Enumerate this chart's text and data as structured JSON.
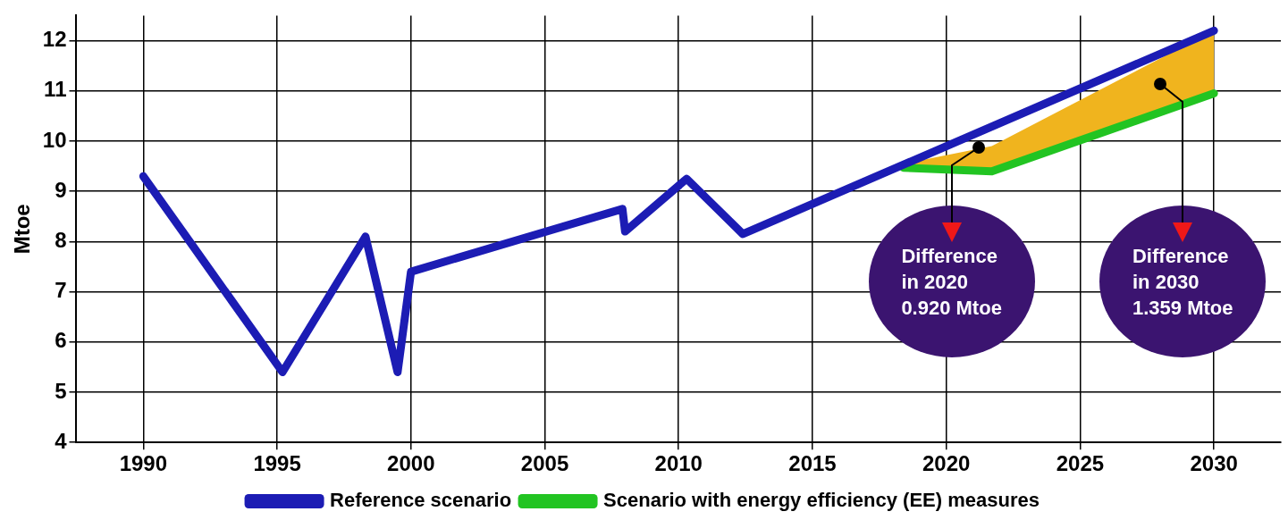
{
  "chart_data": {
    "type": "line",
    "ylabel": "Mtoe",
    "xlim": [
      1987.5,
      2032.5
    ],
    "xticks": [
      1990,
      1995,
      2000,
      2005,
      2010,
      2015,
      2020,
      2025,
      2030
    ],
    "ylim": [
      4,
      12.5
    ],
    "yticks": [
      4,
      5,
      6,
      7,
      8,
      9,
      10,
      11,
      12
    ],
    "grid": true,
    "legend": "bottom",
    "marker": "none",
    "line_style": "solid",
    "series": [
      {
        "type": "area",
        "color": "#f0b41e",
        "x": [
          2018.4,
          2021.7,
          2030
        ],
        "values": [
          9.55,
          9.9,
          12.2
        ]
      },
      {
        "name": "Reference scenario",
        "color": "#1c1cb4",
        "x": [
          1990,
          1995.2,
          1998.3,
          1999.5,
          2000,
          2007.9,
          2008,
          2010.3,
          2012.4,
          2030
        ],
        "values": [
          9.3,
          5.4,
          8.1,
          5.4,
          7.4,
          8.65,
          8.2,
          9.25,
          8.15,
          12.2
        ]
      },
      {
        "name": "Scenario with energy efficiency (EE) measures",
        "color": "#22c422",
        "x": [
          2018.4,
          2021.7,
          2030
        ],
        "values": [
          9.47,
          9.4,
          10.95
        ]
      }
    ],
    "annotations": [
      {
        "text": "Difference\nin 2020\n0.920 Mtoe",
        "x": 2021.2,
        "y": 9.87
      },
      {
        "text": "Difference\nin 2030\n1.359 Mtoe",
        "x": 2028,
        "y": 11.13
      }
    ]
  }
}
